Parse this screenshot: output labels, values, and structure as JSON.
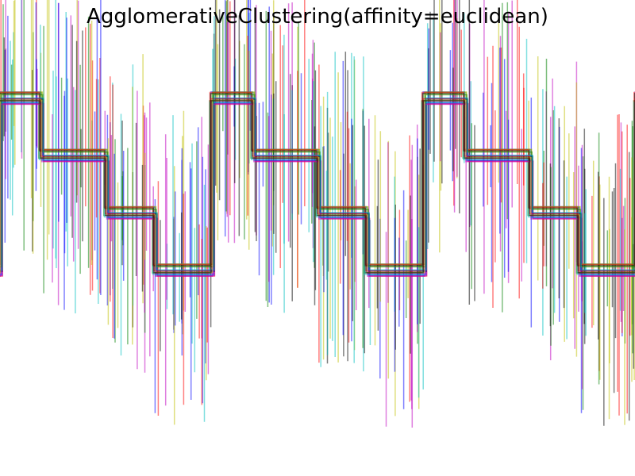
{
  "chart_data": {
    "type": "line",
    "title": "AgglomerativeClustering(affinity=euclidean)",
    "xlabel": "",
    "ylabel": "",
    "xlim": [
      0,
      2000
    ],
    "ylim": [
      -4.6,
      3.7
    ],
    "grid": false,
    "axes_visible": false,
    "legend": "none",
    "line_alpha": 0.5,
    "series_colors": [
      "#0000ff",
      "#008000",
      "#ff0000",
      "#00bfbf",
      "#bf00bf",
      "#bfbf00",
      "#000000"
    ],
    "waveform_period": 668,
    "waveform_segments": [
      {
        "x_start": 0,
        "x_end": 180,
        "level": -1.0
      },
      {
        "x_start": 180,
        "x_end": 310,
        "level": 2.0
      },
      {
        "x_start": 310,
        "x_end": 515,
        "level": 1.0
      },
      {
        "x_start": 515,
        "x_end": 668,
        "level": 0.0
      }
    ],
    "waveform_start_offset": -180,
    "sharp_series_count": 21,
    "sharp_series_level_jitter": 0.12,
    "spike_count": 380,
    "spike_amplitude_range": [
      2.2,
      6.5
    ]
  }
}
